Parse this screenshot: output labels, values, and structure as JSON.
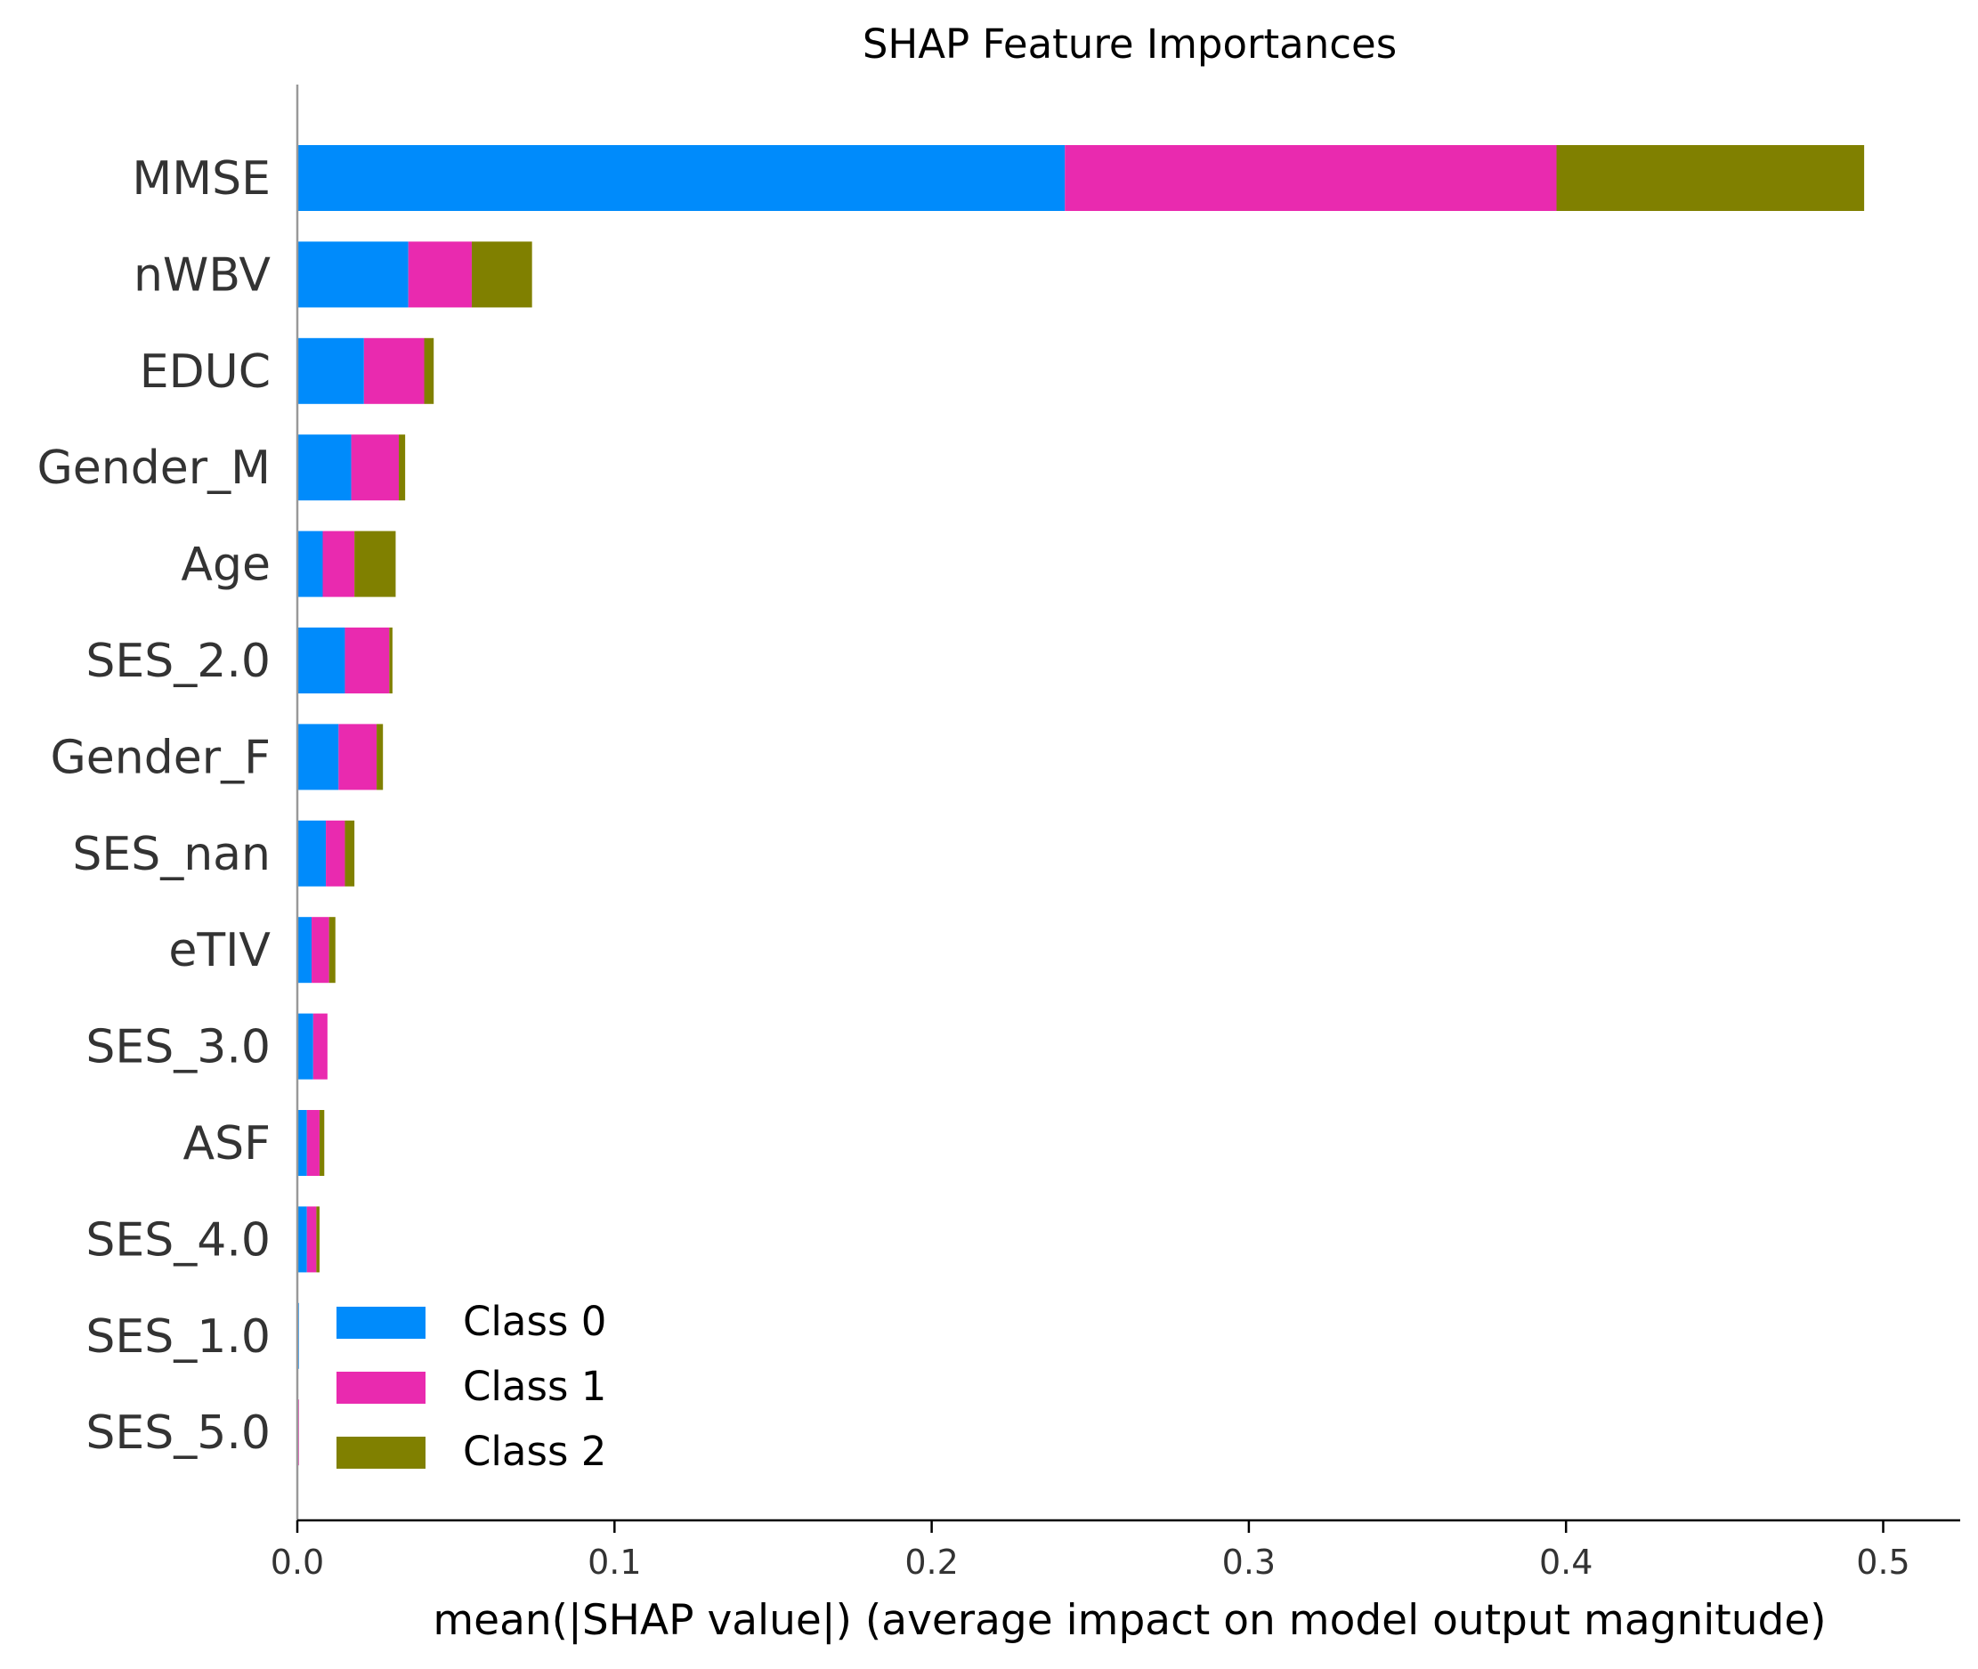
{
  "chart_data": {
    "type": "bar",
    "orientation": "horizontal",
    "stacked": true,
    "title": "SHAP Feature Importances",
    "xlabel": "mean(|SHAP value|) (average impact on model output magnitude)",
    "ylabel": "",
    "xlim": [
      0.0,
      0.52
    ],
    "xticks": [
      "0.0",
      "0.1",
      "0.2",
      "0.3",
      "0.4",
      "0.5"
    ],
    "xtick_values": [
      0.0,
      0.1,
      0.2,
      0.3,
      0.4,
      0.5
    ],
    "grid": false,
    "legend_position": "bottom-left",
    "categories": [
      "MMSE",
      "nWBV",
      "EDUC",
      "Gender_M",
      "Age",
      "SES_2.0",
      "Gender_F",
      "SES_nan",
      "eTIV",
      "SES_3.0",
      "ASF",
      "SES_4.0",
      "SES_1.0",
      "SES_5.0"
    ],
    "series": [
      {
        "name": "Class 0",
        "color": "#008bfb",
        "values": [
          0.242,
          0.035,
          0.021,
          0.017,
          0.008,
          0.015,
          0.013,
          0.009,
          0.0045,
          0.005,
          0.003,
          0.003,
          0.0005,
          0.0
        ]
      },
      {
        "name": "Class 1",
        "color": "#e92aaf",
        "values": [
          0.155,
          0.02,
          0.019,
          0.015,
          0.01,
          0.014,
          0.012,
          0.006,
          0.0055,
          0.0045,
          0.004,
          0.003,
          0.0,
          0.0005
        ]
      },
      {
        "name": "Class 2",
        "color": "#808000",
        "values": [
          0.097,
          0.019,
          0.003,
          0.002,
          0.013,
          0.001,
          0.002,
          0.003,
          0.002,
          0.0,
          0.0015,
          0.001,
          0.0,
          0.0
        ]
      }
    ]
  }
}
